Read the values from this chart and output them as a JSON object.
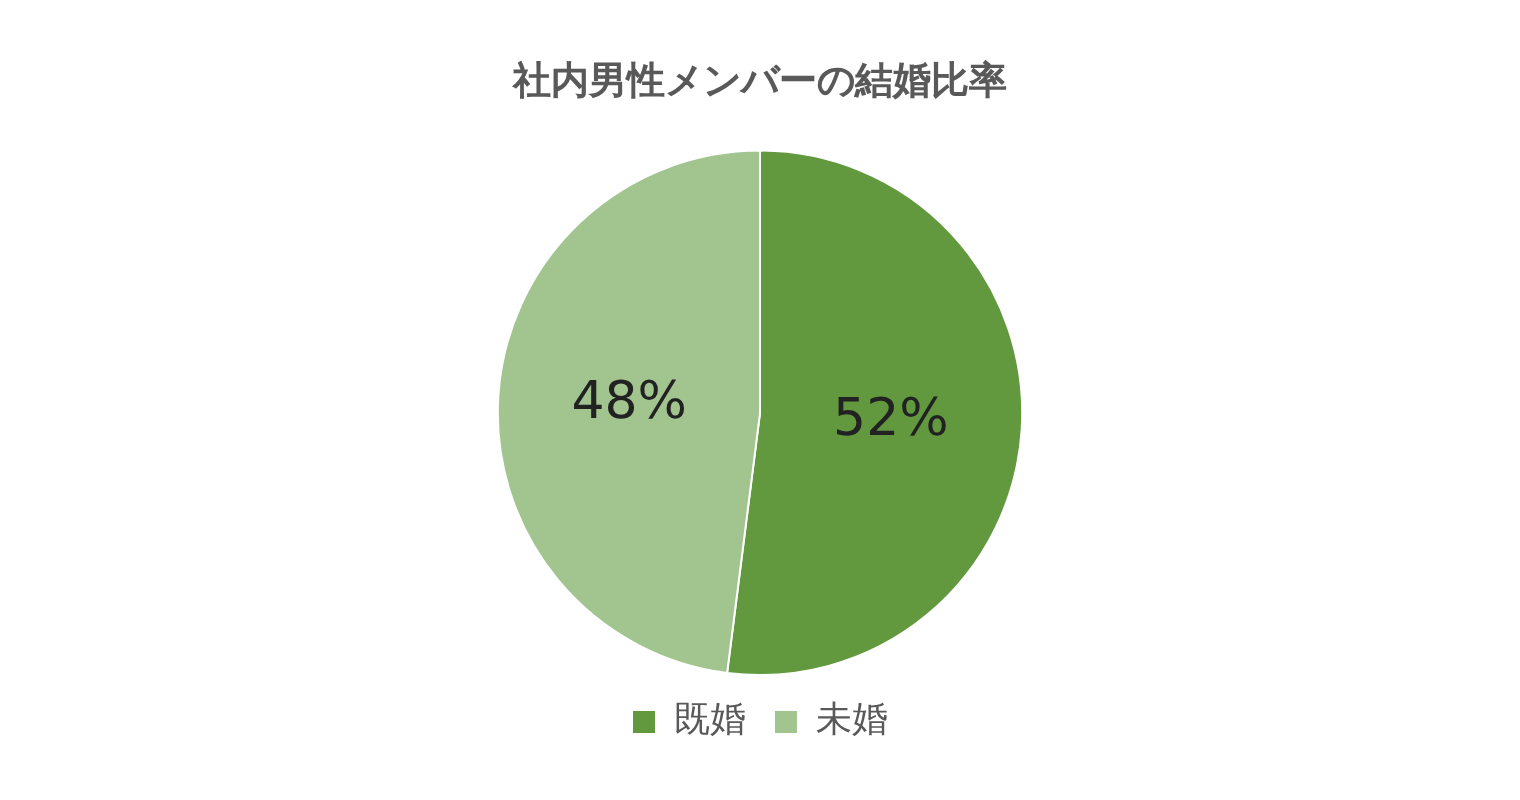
{
  "chart_data": {
    "type": "pie",
    "title": "社内男性メンバーの結婚比率",
    "categories": [
      "既婚",
      "未婚"
    ],
    "values": [
      52,
      48
    ],
    "colors": [
      "#62993e",
      "#a2c48f"
    ],
    "value_labels": [
      "52%",
      "48%"
    ],
    "legend": "bottom"
  }
}
